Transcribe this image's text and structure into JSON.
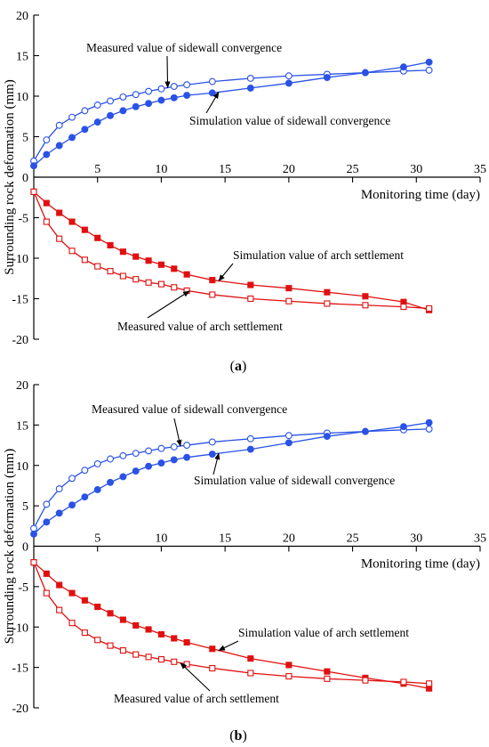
{
  "colors": {
    "blue": "#2a52e6",
    "red": "#e01010",
    "axis": "#000000"
  },
  "chart_data": [
    {
      "type": "line",
      "panel_label": "(a)",
      "panel_letter": "a",
      "xlabel": "Monitoring time (day)",
      "ylabel": "Surrounding rock deformation (mm)",
      "xlim": [
        0,
        35
      ],
      "ylim": [
        -20,
        20
      ],
      "xticks": [
        5,
        10,
        15,
        20,
        25,
        30,
        35
      ],
      "yticks": [
        -20,
        -15,
        -10,
        -5,
        0,
        5,
        10,
        15,
        20
      ],
      "grid": false,
      "series": [
        {
          "name": "Measured value of sidewall convergence",
          "color": "blue",
          "marker": "circle-open",
          "x": [
            0,
            1,
            2,
            3,
            4,
            5,
            6,
            7,
            8,
            9,
            10,
            11,
            12,
            14,
            17,
            20,
            23,
            26,
            29,
            31
          ],
          "y": [
            2.0,
            4.6,
            6.4,
            7.4,
            8.2,
            8.9,
            9.4,
            9.9,
            10.2,
            10.6,
            10.9,
            11.2,
            11.4,
            11.8,
            12.2,
            12.5,
            12.7,
            12.9,
            13.1,
            13.2
          ]
        },
        {
          "name": "Simulation value of sidewall convergence",
          "color": "blue",
          "marker": "circle-filled",
          "x": [
            0,
            1,
            2,
            3,
            4,
            5,
            6,
            7,
            8,
            9,
            10,
            11,
            12,
            14,
            17,
            20,
            23,
            26,
            29,
            31
          ],
          "y": [
            1.4,
            2.8,
            3.9,
            4.9,
            5.9,
            6.8,
            7.6,
            8.2,
            8.7,
            9.1,
            9.5,
            9.8,
            10.1,
            10.4,
            11.0,
            11.6,
            12.3,
            12.9,
            13.6,
            14.2
          ]
        },
        {
          "name": "Simulation value of arch settlement",
          "color": "red",
          "marker": "square-filled",
          "x": [
            0,
            1,
            2,
            3,
            4,
            5,
            6,
            7,
            8,
            9,
            10,
            11,
            12,
            14,
            17,
            20,
            23,
            26,
            29,
            31
          ],
          "y": [
            -1.8,
            -3.2,
            -4.4,
            -5.5,
            -6.5,
            -7.5,
            -8.4,
            -9.2,
            -9.8,
            -10.3,
            -10.8,
            -11.3,
            -12.0,
            -12.7,
            -13.3,
            -13.7,
            -14.2,
            -14.7,
            -15.4,
            -16.4
          ]
        },
        {
          "name": "Measured value of arch settlement",
          "color": "red",
          "marker": "square-open",
          "x": [
            0,
            1,
            2,
            3,
            4,
            5,
            6,
            7,
            8,
            9,
            10,
            11,
            12,
            14,
            17,
            20,
            23,
            26,
            29,
            31
          ],
          "y": [
            -1.8,
            -5.5,
            -7.6,
            -9.1,
            -10.2,
            -11.0,
            -11.6,
            -12.2,
            -12.6,
            -13.0,
            -13.2,
            -13.6,
            -14.0,
            -14.5,
            -15.0,
            -15.3,
            -15.6,
            -15.8,
            -16.0,
            -16.2
          ]
        }
      ],
      "annotations": [
        {
          "text": "Measured value of sidewall convergence",
          "series": 0,
          "point_x": 10.5
        },
        {
          "text": "Simulation value of sidewall convergence",
          "series": 1,
          "point_x": 14.5
        },
        {
          "text": "Simulation value of arch settlement",
          "series": 2,
          "point_x": 14.5
        },
        {
          "text": "Measured value of arch settlement",
          "series": 3,
          "point_x": 12.2
        }
      ]
    },
    {
      "type": "line",
      "panel_label": "(b)",
      "panel_letter": "b",
      "xlabel": "Monitoring time (day)",
      "ylabel": "Surrounding rock deformation (mm)",
      "xlim": [
        0,
        35
      ],
      "ylim": [
        -20,
        20
      ],
      "xticks": [
        5,
        10,
        15,
        20,
        25,
        30,
        35
      ],
      "yticks": [
        -20,
        -15,
        -10,
        -5,
        0,
        5,
        10,
        15,
        20
      ],
      "grid": false,
      "series": [
        {
          "name": "Measured value of sidewall convergence",
          "color": "blue",
          "marker": "circle-open",
          "x": [
            0,
            1,
            2,
            3,
            4,
            5,
            6,
            7,
            8,
            9,
            10,
            11,
            12,
            14,
            17,
            20,
            23,
            26,
            29,
            31
          ],
          "y": [
            2.2,
            5.2,
            7.1,
            8.4,
            9.4,
            10.2,
            10.8,
            11.2,
            11.5,
            11.8,
            12.1,
            12.3,
            12.5,
            12.9,
            13.3,
            13.7,
            14.0,
            14.2,
            14.4,
            14.5
          ]
        },
        {
          "name": "Simulation value of sidewall convergence",
          "color": "blue",
          "marker": "circle-filled",
          "x": [
            0,
            1,
            2,
            3,
            4,
            5,
            6,
            7,
            8,
            9,
            10,
            11,
            12,
            14,
            17,
            20,
            23,
            26,
            29,
            31
          ],
          "y": [
            1.5,
            3.0,
            4.1,
            5.1,
            6.1,
            7.0,
            7.9,
            8.6,
            9.3,
            9.9,
            10.3,
            10.7,
            11.0,
            11.4,
            12.0,
            12.8,
            13.6,
            14.2,
            14.8,
            15.3
          ]
        },
        {
          "name": "Simulation value of arch settlement",
          "color": "red",
          "marker": "square-filled",
          "x": [
            0,
            1,
            2,
            3,
            4,
            5,
            6,
            7,
            8,
            9,
            10,
            11,
            12,
            14,
            17,
            20,
            23,
            26,
            29,
            31
          ],
          "y": [
            -2.0,
            -3.4,
            -4.8,
            -5.8,
            -6.7,
            -7.5,
            -8.3,
            -9.1,
            -9.8,
            -10.3,
            -10.9,
            -11.4,
            -11.9,
            -12.7,
            -13.9,
            -14.7,
            -15.5,
            -16.3,
            -17.0,
            -17.6
          ]
        },
        {
          "name": "Measured value of arch settlement",
          "color": "red",
          "marker": "square-open",
          "x": [
            0,
            1,
            2,
            3,
            4,
            5,
            6,
            7,
            8,
            9,
            10,
            11,
            12,
            14,
            17,
            20,
            23,
            26,
            29,
            31
          ],
          "y": [
            -2.0,
            -5.8,
            -7.9,
            -9.5,
            -10.7,
            -11.6,
            -12.3,
            -12.9,
            -13.4,
            -13.7,
            -14.0,
            -14.3,
            -14.6,
            -15.1,
            -15.7,
            -16.1,
            -16.4,
            -16.6,
            -16.8,
            -17.0
          ]
        }
      ],
      "annotations": [
        {
          "text": "Measured value of sidewall convergence",
          "series": 0,
          "point_x": 11.5
        },
        {
          "text": "Simulation value of sidewall convergence",
          "series": 1,
          "point_x": 14.5
        },
        {
          "text": "Simulation value of arch settlement",
          "series": 2,
          "point_x": 14.5
        },
        {
          "text": "Measured value of arch settlement",
          "series": 3,
          "point_x": 11.5
        }
      ]
    }
  ]
}
